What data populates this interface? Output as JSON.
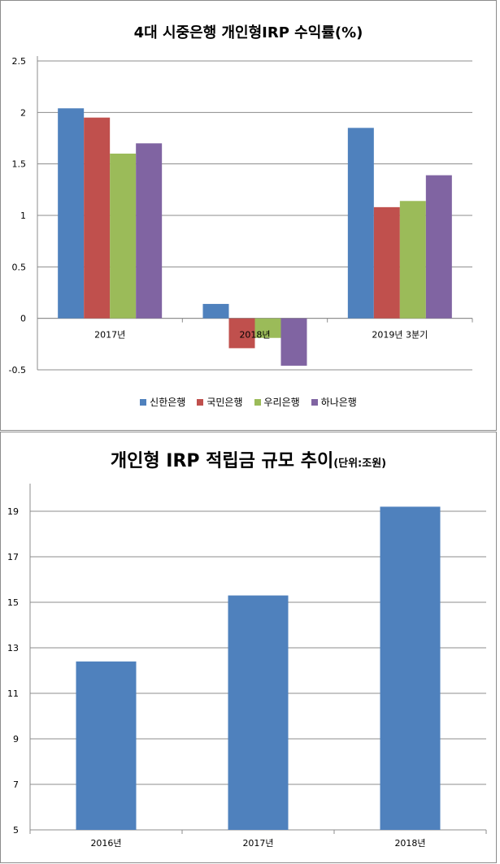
{
  "chart_data": [
    {
      "type": "bar",
      "title": "4대 시중은행 개인형IRP 수익률(%)",
      "categories": [
        "2017년",
        "2018년",
        "2019년 3분기"
      ],
      "series": [
        {
          "name": "신한은행",
          "color": "#4f81bd",
          "values": [
            2.04,
            0.14,
            1.85
          ]
        },
        {
          "name": "국민은행",
          "color": "#c0504d",
          "values": [
            1.95,
            -0.29,
            1.08
          ]
        },
        {
          "name": "우리은행",
          "color": "#9bbb59",
          "values": [
            1.6,
            -0.19,
            1.14
          ]
        },
        {
          "name": "하나은행",
          "color": "#8064a2",
          "values": [
            1.7,
            -0.46,
            1.39
          ]
        }
      ],
      "yticks": [
        "2.5",
        "2",
        "1.5",
        "1",
        "0.5",
        "0",
        "-0.5"
      ],
      "ylim": [
        -0.5,
        2.5
      ],
      "grid": true,
      "legend": "bottom"
    },
    {
      "type": "bar",
      "title": "개인형 IRP 적립금 규모 추이",
      "unit": "(단위:조원)",
      "categories": [
        "2016년",
        "2017년",
        "2018년"
      ],
      "series": [
        {
          "color": "#4f81bd",
          "values": [
            12.4,
            15.3,
            19.2
          ]
        }
      ],
      "yticks": [
        "19",
        "17",
        "15",
        "13",
        "11",
        "9",
        "7",
        "5"
      ],
      "ylim": [
        5,
        20
      ],
      "grid": true
    }
  ]
}
